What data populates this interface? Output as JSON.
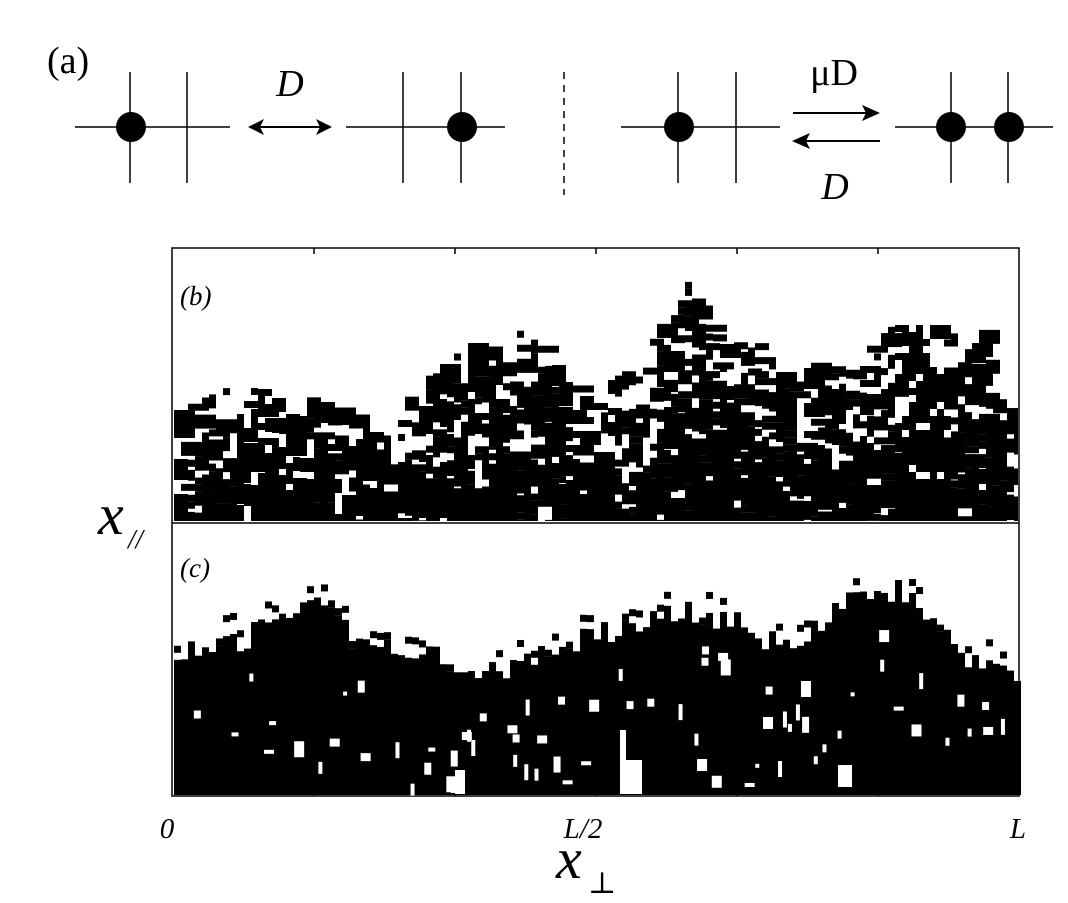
{
  "panel_a": {
    "label": "(a)",
    "left_rate": "D",
    "right_forward_rate": "μD",
    "right_backward_rate": "D"
  },
  "panel_b": {
    "label": "(b)"
  },
  "panel_c": {
    "label": "(c)"
  },
  "axes": {
    "ylabel": "x",
    "ylabel_sub": "//",
    "xlabel": "x",
    "xlabel_sub": "⊥",
    "xticks": [
      "0",
      "L/2",
      "L"
    ]
  },
  "colors": {
    "ink": "#000000",
    "background": "#ffffff"
  }
}
